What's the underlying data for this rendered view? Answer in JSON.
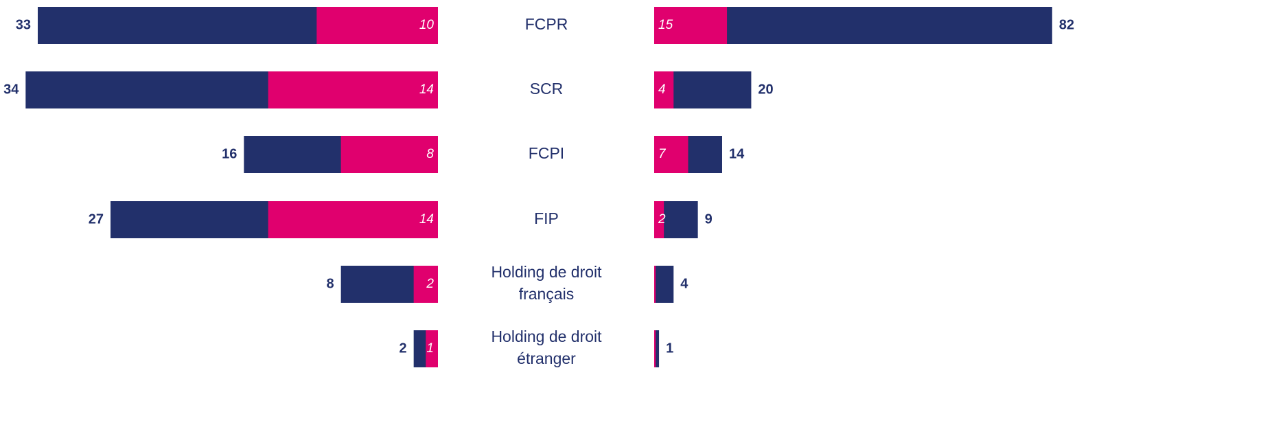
{
  "chart_data": [
    {
      "type": "bar",
      "orientation": "horizontal",
      "direction": "left",
      "categories": [
        "FCPR",
        "SCR",
        "FCPI",
        "FIP",
        "Holding de droit\nfrançais",
        "Holding de droit\nétranger"
      ],
      "xlim": [
        0,
        36
      ],
      "series": [
        {
          "color": "#22306b",
          "values": [
            33,
            34,
            16,
            27,
            8,
            2
          ]
        },
        {
          "color": "#e0006e",
          "values": [
            10,
            14,
            8,
            14,
            2,
            1
          ]
        }
      ]
    },
    {
      "type": "bar",
      "orientation": "horizontal",
      "direction": "right",
      "xlim": [
        0,
        85
      ],
      "series": [
        {
          "color": "#22306b",
          "values": [
            82,
            20,
            14,
            9,
            4,
            1
          ]
        },
        {
          "color": "#e0006e",
          "values": [
            15,
            4,
            7,
            2,
            0.3,
            0.3
          ],
          "value_labels": [
            "15",
            "4",
            "7",
            "2",
            null,
            null
          ]
        }
      ]
    }
  ]
}
